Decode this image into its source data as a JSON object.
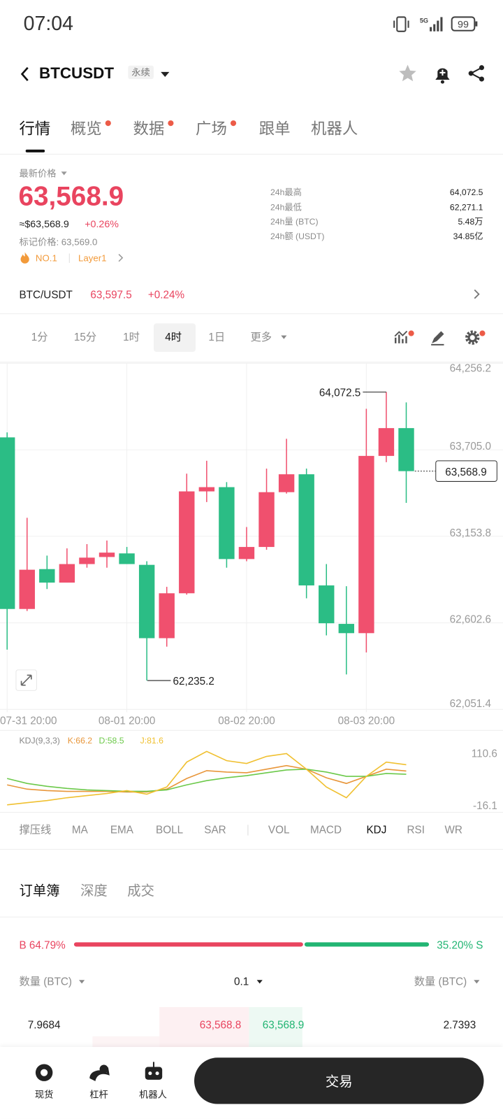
{
  "status_bar": {
    "time": "07:04",
    "network": "5G",
    "battery": "99"
  },
  "header": {
    "symbol": "BTCUSDT",
    "contract": "永续"
  },
  "tabs": [
    "行情",
    "概览",
    "数据",
    "广场",
    "跟单",
    "机器人"
  ],
  "price": {
    "label": "最新价格",
    "last": "63,568.9",
    "usd": "≈$63,568.9",
    "change": "+0.26%",
    "mark": "标记价格: 63,569.0",
    "rank": "NO.1",
    "sector": "Layer1"
  },
  "stats": [
    {
      "label": "24h最高",
      "value": "64,072.5"
    },
    {
      "label": "24h最低",
      "value": "62,271.1"
    },
    {
      "label": "24h量 (BTC)",
      "value": "5.48万"
    },
    {
      "label": "24h额 (USDT)",
      "value": "34.85亿"
    }
  ],
  "spot": {
    "pair": "BTC/USDT",
    "price": "63,597.5",
    "change": "+0.24%"
  },
  "intervals": [
    "1分",
    "15分",
    "1时",
    "4时",
    "1日",
    "更多"
  ],
  "chart_data": [
    {
      "type": "candlestick",
      "categories": [
        "07-31 20:00",
        null,
        null,
        null,
        null,
        null,
        "08-01 20:00",
        null,
        null,
        null,
        null,
        null,
        "08-02 20:00",
        null,
        null,
        null,
        null,
        null,
        "08-03 20:00",
        null,
        null
      ],
      "open": [
        63784,
        62691,
        62945,
        62859,
        62977,
        63022,
        63045,
        62972,
        62505,
        62791,
        63440,
        63467,
        63009,
        63086,
        63435,
        63549,
        62841,
        62596,
        62537,
        63666,
        63843
      ],
      "high": [
        63816,
        63272,
        63031,
        63077,
        63104,
        63127,
        63086,
        62995,
        62832,
        63553,
        63635,
        63499,
        63213,
        63585,
        63775,
        63585,
        62977,
        62836,
        63966,
        64072.5,
        64007
      ],
      "low": [
        62432,
        62678,
        62818,
        62859,
        62954,
        62954,
        62977,
        62235.2,
        62451,
        62782,
        63372,
        62954,
        62995,
        63068,
        63426,
        62759,
        62523,
        62274,
        62414,
        63626,
        63367
      ],
      "close": [
        62691,
        62941,
        62859,
        62977,
        63018,
        63050,
        62977,
        62505,
        62791,
        63440,
        63467,
        63009,
        63086,
        63435,
        63549,
        62841,
        62600,
        62537,
        63666,
        63843,
        63568.9
      ],
      "up_color": "#f0506e",
      "down_color": "#2bbd85",
      "ylim": [
        62051.4,
        64256.2
      ],
      "yticks": [
        {
          "value": 64256.2,
          "label": "64,256.2"
        },
        {
          "value": 63705.0,
          "label": "63,705.0"
        },
        {
          "value": 63153.8,
          "label": "63,153.8"
        },
        {
          "value": 62602.6,
          "label": "62,602.6"
        },
        {
          "value": 62051.4,
          "label": "62,051.4"
        }
      ],
      "grid": true,
      "annotations": {
        "high": {
          "value": 64072.5,
          "label": "64,072.5"
        },
        "low": {
          "value": 62235.2,
          "label": "62,235.2"
        },
        "last": {
          "value": 63568.9,
          "label": "63,568.9"
        }
      }
    },
    {
      "type": "line",
      "title": "KDJ(9,3,3)",
      "series": [
        {
          "name": "K:66.2",
          "color": "#e8963a",
          "values": [
            32.5,
            22.1,
            18.6,
            16.7,
            16.7,
            16.7,
            15.1,
            15.1,
            22.1,
            48.1,
            67.2,
            63.7,
            62.0,
            70.7,
            79.4,
            70.7,
            49.8,
            36.0,
            53.3,
            70.7,
            66.2
          ]
        },
        {
          "name": "D:58.5",
          "color": "#6cc94a",
          "values": [
            48.1,
            36.0,
            29.0,
            23.8,
            20.3,
            18.6,
            16.9,
            16.9,
            20.3,
            32.5,
            42.9,
            49.8,
            55.0,
            62.0,
            68.9,
            70.7,
            63.7,
            53.3,
            53.3,
            60.3,
            58.5
          ]
        },
        {
          "name": "J:81.6",
          "color": "#f0c030",
          "values": [
            -16.1,
            -10.9,
            -5.7,
            1.2,
            6.4,
            11.6,
            18.6,
            9.9,
            27.3,
            88.0,
            114.1,
            91.5,
            84.6,
            101.9,
            108.9,
            70.7,
            27.3,
            1.2,
            53.3,
            88.0,
            81.6
          ]
        }
      ],
      "ylim": [
        -16.1,
        110.6
      ],
      "yticks": [
        110.6,
        -16.1
      ]
    }
  ],
  "indicators": [
    "撑压线",
    "MA",
    "EMA",
    "BOLL",
    "SAR",
    "VOL",
    "MACD",
    "KDJ",
    "RSI",
    "WR"
  ],
  "orderbook": {
    "tabs": [
      "订单簿",
      "深度",
      "成交"
    ],
    "buy_ratio": {
      "value": 64.79,
      "label": "B 64.79%"
    },
    "sell_ratio": {
      "value": 35.2,
      "label": "35.20% S"
    },
    "columns": [
      "数量 (BTC)",
      "0.1",
      "数量 (BTC)"
    ],
    "rows": [
      [
        "7.9684",
        "63,568.8",
        "63,568.9",
        "2.7393"
      ]
    ]
  },
  "nav": {
    "items": [
      "现货",
      "杠杆",
      "机器人"
    ],
    "trade": "交易"
  }
}
